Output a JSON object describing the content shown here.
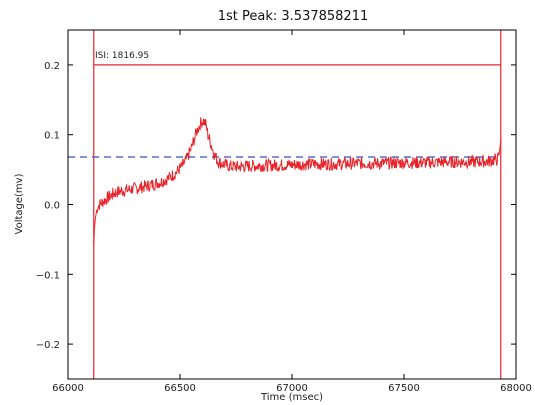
{
  "chart_data": {
    "type": "line",
    "title": "1st Peak: 3.537858211",
    "xlabel": "Time (msec)",
    "ylabel": "Voltage(mv)",
    "xlim": [
      66000,
      68000
    ],
    "ylim": [
      -0.25,
      0.25
    ],
    "xticks": [
      66000,
      66500,
      67000,
      67500,
      68000
    ],
    "xtick_labels": [
      "66000",
      "66500",
      "67000",
      "67500",
      "68000"
    ],
    "yticks": [
      -0.2,
      -0.1,
      0.0,
      0.1,
      0.2
    ],
    "ytick_labels": [
      "−0.2",
      "−0.1",
      "0.0",
      "0.1",
      "0.2"
    ],
    "grid": false,
    "legend": "none",
    "annotation": "ISI: 1816.95",
    "series": [
      {
        "color": "#e8232a",
        "x": [
          66115,
          66118,
          66122,
          66130,
          66140,
          66160,
          66180,
          66200,
          66220,
          66250,
          66280,
          66300,
          66330,
          66360,
          66390,
          66420,
          66450,
          66480,
          66510,
          66530,
          66550,
          66565,
          66575,
          66585,
          66595,
          66605,
          66615,
          66625,
          66640,
          66655,
          66670,
          66690,
          66720,
          66760,
          66800,
          66900,
          67000,
          67100,
          67200,
          67300,
          67400,
          67500,
          67600,
          67700,
          67800,
          67880,
          67920,
          67928,
          67933
        ],
        "y": [
          -0.06,
          -0.035,
          -0.02,
          -0.005,
          0.0,
          0.005,
          0.01,
          0.015,
          0.018,
          0.02,
          0.022,
          0.023,
          0.025,
          0.027,
          0.03,
          0.033,
          0.038,
          0.045,
          0.055,
          0.065,
          0.08,
          0.095,
          0.105,
          0.112,
          0.118,
          0.12,
          0.115,
          0.1,
          0.085,
          0.07,
          0.062,
          0.058,
          0.055,
          0.054,
          0.055,
          0.056,
          0.057,
          0.058,
          0.058,
          0.059,
          0.059,
          0.06,
          0.06,
          0.061,
          0.061,
          0.062,
          0.065,
          0.08,
          0.095
        ]
      }
    ],
    "reference_lines": [
      {
        "orientation": "vertical",
        "x": 66115,
        "color": "#e8232a"
      },
      {
        "orientation": "vertical",
        "x": 67932,
        "color": "#e8232a"
      },
      {
        "orientation": "horizontal",
        "y": 0.2,
        "x_range": [
          66115,
          67932
        ],
        "color": "#e8232a"
      },
      {
        "orientation": "horizontal",
        "y": 0.068,
        "x_range": [
          66000,
          67932
        ],
        "color": "#3b4fb5",
        "style": "dashed"
      }
    ]
  }
}
